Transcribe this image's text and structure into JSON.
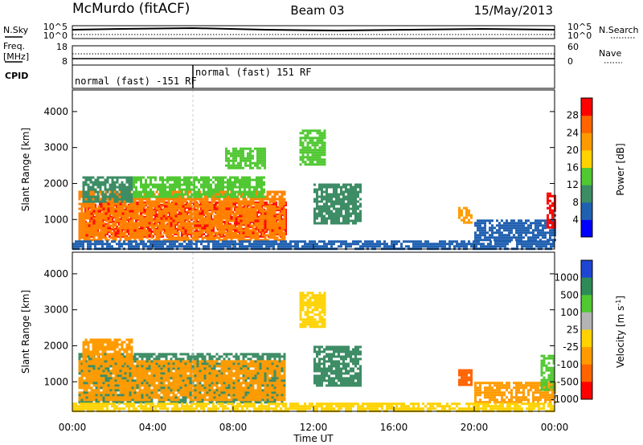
{
  "header": {
    "radar": "McMurdo (fitACF)",
    "beam": "Beam 03",
    "date": "15/May/2013"
  },
  "top_panels": {
    "nsky_label": "N.Sky",
    "nsearch_label": "N.Search",
    "noise_ticks": [
      "10^5",
      "10^0"
    ],
    "freq_label": "Freq.",
    "freq_unit": "[MHz]",
    "freq_ticks": [
      "18",
      "8"
    ],
    "nave_label": "Nave",
    "nave_ticks": [
      "60",
      "0"
    ],
    "cpid_label": "CPID",
    "cpid_segments": [
      {
        "text": "normal (fast) -151 RF",
        "from_hour": 0,
        "to_hour": 6.0
      },
      {
        "text": "normal (fast) 151 RF",
        "from_hour": 6.0,
        "to_hour": 24
      }
    ]
  },
  "chart_data": [
    {
      "type": "heatmap",
      "name": "power",
      "ylabel": "Slant Range [km]",
      "xlabel": "Time UT",
      "xticks": [
        "00:00",
        "04:00",
        "08:00",
        "12:00",
        "16:00",
        "20:00",
        "00:00"
      ],
      "xlim": [
        0,
        24
      ],
      "ylim": [
        180,
        4600
      ],
      "yticks": [
        "1000",
        "2000",
        "3000",
        "4000"
      ],
      "colorbar": {
        "label": "Power [dB]",
        "ticks": [
          "4",
          "8",
          "12",
          "16",
          "20",
          "24",
          "28"
        ],
        "colors": [
          "#0000ff",
          "#2060b0",
          "#3c8c64",
          "#50c832",
          "#ffd200",
          "#ff9b00",
          "#ff6400",
          "#ff0000"
        ]
      },
      "regions": [
        {
          "t": [
            0.6,
            10.6
          ],
          "r": [
            550,
            1500
          ],
          "c": "#ff0000"
        },
        {
          "t": [
            0.3,
            10.6
          ],
          "r": [
            400,
            1800
          ],
          "c": "#ff8200"
        },
        {
          "t": [
            0.5,
            3.0
          ],
          "r": [
            1500,
            2200
          ],
          "c": "#3c8c64"
        },
        {
          "t": [
            3.0,
            9.5
          ],
          "r": [
            1600,
            2200
          ],
          "c": "#50c832"
        },
        {
          "t": [
            11.3,
            12.6
          ],
          "r": [
            2500,
            3500
          ],
          "c": "#50c832"
        },
        {
          "t": [
            12.0,
            14.4
          ],
          "r": [
            900,
            2000
          ],
          "c": "#3c8c64"
        },
        {
          "t": [
            7.6,
            9.6
          ],
          "r": [
            2400,
            3000
          ],
          "c": "#50c832"
        },
        {
          "t": [
            19.2,
            19.9
          ],
          "r": [
            900,
            1350
          ],
          "c": "#ff9b00"
        },
        {
          "t": [
            20.0,
            24.0
          ],
          "r": [
            450,
            1000
          ],
          "c": "#2060b0"
        },
        {
          "t": [
            23.6,
            24.0
          ],
          "r": [
            800,
            1750
          ],
          "c": "#ff0000"
        },
        {
          "t": [
            0.0,
            24.0
          ],
          "r": [
            200,
            420
          ],
          "c": "#2060b0"
        }
      ]
    },
    {
      "type": "heatmap",
      "name": "velocity",
      "ylabel": "Slant Range [km]",
      "xlabel": "Time UT",
      "xticks": [
        "00:00",
        "04:00",
        "08:00",
        "12:00",
        "16:00",
        "20:00",
        "00:00"
      ],
      "xlim": [
        0,
        24
      ],
      "ylim": [
        180,
        4600
      ],
      "yticks": [
        "1000",
        "2000",
        "3000",
        "4000"
      ],
      "colorbar": {
        "label": "Velocity [m s-1]",
        "ticks": [
          "1000",
          "500",
          "100",
          "25",
          "-25",
          "-100",
          "-500",
          "-1000"
        ],
        "colors": [
          "#1e46d2",
          "#2e8b57",
          "#50c832",
          "#b4b4b4",
          "#ffd200",
          "#ff9b00",
          "#ff6400",
          "#ff0000"
        ]
      },
      "regions": [
        {
          "t": [
            0.3,
            10.6
          ],
          "r": [
            400,
            1800
          ],
          "c": "#3c8c64"
        },
        {
          "t": [
            0.3,
            10.6
          ],
          "r": [
            500,
            1600
          ],
          "c": "#ff9b00"
        },
        {
          "t": [
            0.5,
            3.0
          ],
          "r": [
            1500,
            2200
          ],
          "c": "#ff9b00"
        },
        {
          "t": [
            11.3,
            12.6
          ],
          "r": [
            2500,
            3500
          ],
          "c": "#ffd200"
        },
        {
          "t": [
            12.0,
            14.4
          ],
          "r": [
            900,
            2000
          ],
          "c": "#3c8c64"
        },
        {
          "t": [
            19.2,
            19.9
          ],
          "r": [
            900,
            1350
          ],
          "c": "#ff6400"
        },
        {
          "t": [
            20.0,
            24.0
          ],
          "r": [
            450,
            1000
          ],
          "c": "#ff9b00"
        },
        {
          "t": [
            23.3,
            24.0
          ],
          "r": [
            800,
            1750
          ],
          "c": "#50c832"
        },
        {
          "t": [
            0.0,
            24.0
          ],
          "r": [
            200,
            420
          ],
          "c": "#ffd200"
        }
      ]
    }
  ]
}
